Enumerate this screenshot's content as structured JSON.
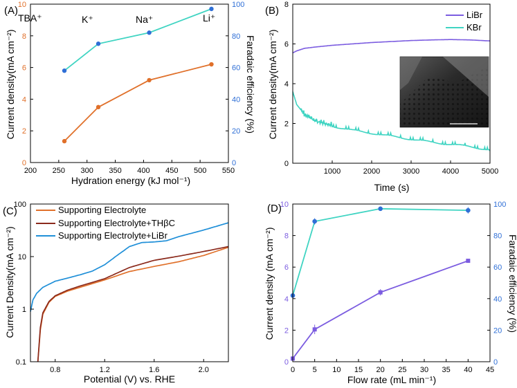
{
  "colors": {
    "orange": "#e0702a",
    "cyan": "#3fd4c2",
    "blue": "#2f6fd6",
    "purple": "#7b5ce0",
    "brown": "#8b2a1c",
    "sky": "#1f8fd8"
  },
  "chart_data": [
    {
      "panel": "(A)",
      "type": "line",
      "xlabel": "Hydration energy (kJ mol⁻¹)",
      "ylabel": "Current density(mA cm⁻²)",
      "y2label": "Faradaic efficiency (%)",
      "xlim": [
        200,
        550
      ],
      "ylim": [
        0,
        10
      ],
      "y2lim": [
        0,
        100
      ],
      "xticks": [
        "200",
        "250",
        "300",
        "350",
        "400",
        "450",
        "500",
        "550"
      ],
      "yticks": [
        "0",
        "2",
        "4",
        "6",
        "8",
        "10"
      ],
      "y2ticks": [
        "0",
        "20",
        "40",
        "60",
        "80",
        "100"
      ],
      "x": [
        260,
        320,
        410,
        520
      ],
      "ion_labels": [
        "TBA⁺",
        "K⁺",
        "Na⁺",
        "Li⁺"
      ],
      "series": [
        {
          "axis": "left",
          "color": "orange",
          "values": [
            1.35,
            3.5,
            5.2,
            6.2
          ]
        },
        {
          "axis": "right",
          "color": "cyan",
          "marker_color": "blue",
          "values": [
            58,
            75,
            82,
            97
          ]
        }
      ]
    },
    {
      "panel": "(B)",
      "type": "line",
      "xlabel": "Time (s)",
      "ylabel": "Current density(mA cm⁻²)",
      "xlim": [
        0,
        5000
      ],
      "ylim": [
        0,
        8
      ],
      "xticks": [
        "1000",
        "2000",
        "3000",
        "4000",
        "5000"
      ],
      "yticks": [
        "0",
        "2",
        "4",
        "6",
        "8"
      ],
      "legend_position": "top-right",
      "inset": "SEM image",
      "series": [
        {
          "name": "LiBr",
          "color": "purple",
          "x": [
            0,
            100,
            300,
            600,
            1000,
            1500,
            2000,
            2500,
            3000,
            3500,
            4000,
            4500,
            5000
          ],
          "values": [
            5.55,
            5.65,
            5.78,
            5.85,
            5.93,
            6.0,
            6.07,
            6.12,
            6.17,
            6.2,
            6.22,
            6.2,
            6.15
          ]
        },
        {
          "name": "KBr",
          "color": "cyan",
          "x": [
            0,
            100,
            300,
            600,
            1000,
            1500,
            2000,
            2500,
            3000,
            3500,
            4000,
            4500,
            5000
          ],
          "values": [
            3.6,
            2.95,
            2.45,
            2.1,
            1.9,
            1.7,
            1.55,
            1.38,
            1.22,
            1.05,
            0.92,
            0.8,
            0.62
          ]
        }
      ]
    },
    {
      "panel": "(C)",
      "type": "line",
      "xlabel": "Potential (V) vs. RHE",
      "ylabel": "Current Density(mA cm⁻²)",
      "log_y": true,
      "xlim": [
        0.6,
        2.2
      ],
      "ylim": [
        0.1,
        100
      ],
      "xticks": [
        "0.8",
        "1.2",
        "1.6",
        "2.0"
      ],
      "yticks": [
        "0.1",
        "1",
        "10",
        "100"
      ],
      "legend_position": "top-left",
      "series": [
        {
          "name": "Supporting Electrolyte",
          "color": "orange",
          "x": [
            0.66,
            0.68,
            0.7,
            0.75,
            0.8,
            0.9,
            1.0,
            1.2,
            1.4,
            1.6,
            1.8,
            2.0,
            2.2
          ],
          "values": [
            0.1,
            0.4,
            0.8,
            1.35,
            1.75,
            2.2,
            2.6,
            3.6,
            5.2,
            6.5,
            8.0,
            10.5,
            15
          ]
        },
        {
          "name": "Supporting Electrolyte+THβC",
          "color": "brown",
          "x": [
            0.66,
            0.68,
            0.7,
            0.75,
            0.8,
            0.9,
            1.0,
            1.2,
            1.4,
            1.6,
            1.8,
            2.0,
            2.2
          ],
          "values": [
            0.1,
            0.45,
            0.85,
            1.4,
            1.8,
            2.3,
            2.75,
            3.8,
            6.2,
            8.5,
            10.2,
            12.5,
            15.5
          ]
        },
        {
          "name": "Supporting Electrolyte+LiBr",
          "color": "sky",
          "x": [
            0.6,
            0.62,
            0.65,
            0.7,
            0.8,
            0.9,
            1.0,
            1.1,
            1.2,
            1.3,
            1.4,
            1.5,
            1.6,
            1.7,
            1.8,
            2.0,
            2.2
          ],
          "values": [
            0.9,
            1.5,
            2.0,
            2.6,
            3.4,
            3.9,
            4.5,
            5.3,
            7.0,
            10.5,
            15.5,
            18.5,
            19.0,
            20.0,
            24.0,
            32.0,
            44.0
          ]
        }
      ]
    },
    {
      "panel": "(D)",
      "type": "line",
      "xlabel": "Flow rate (mL min⁻¹)",
      "ylabel": "Current density (mA cm⁻²)",
      "y2label": "Faradaic efficiency (%)",
      "xlim": [
        0,
        45
      ],
      "ylim": [
        0,
        10
      ],
      "y2lim": [
        0,
        100
      ],
      "xticks": [
        "0",
        "5",
        "10",
        "15",
        "20",
        "25",
        "30",
        "35",
        "40",
        "45"
      ],
      "yticks": [
        "0",
        "2",
        "4",
        "6",
        "8",
        "10"
      ],
      "y2ticks": [
        "0",
        "20",
        "40",
        "60",
        "80",
        "100"
      ],
      "x": [
        0,
        5,
        20,
        40
      ],
      "series": [
        {
          "axis": "left",
          "color": "purple",
          "values": [
            0.2,
            2.05,
            4.4,
            6.4
          ],
          "errors": [
            0.1,
            0.3,
            0.2,
            0.1
          ]
        },
        {
          "axis": "right",
          "color": "cyan",
          "marker_color": "blue",
          "values": [
            42,
            89,
            97,
            96
          ],
          "errors": [
            1,
            2,
            1,
            2
          ]
        }
      ]
    }
  ]
}
